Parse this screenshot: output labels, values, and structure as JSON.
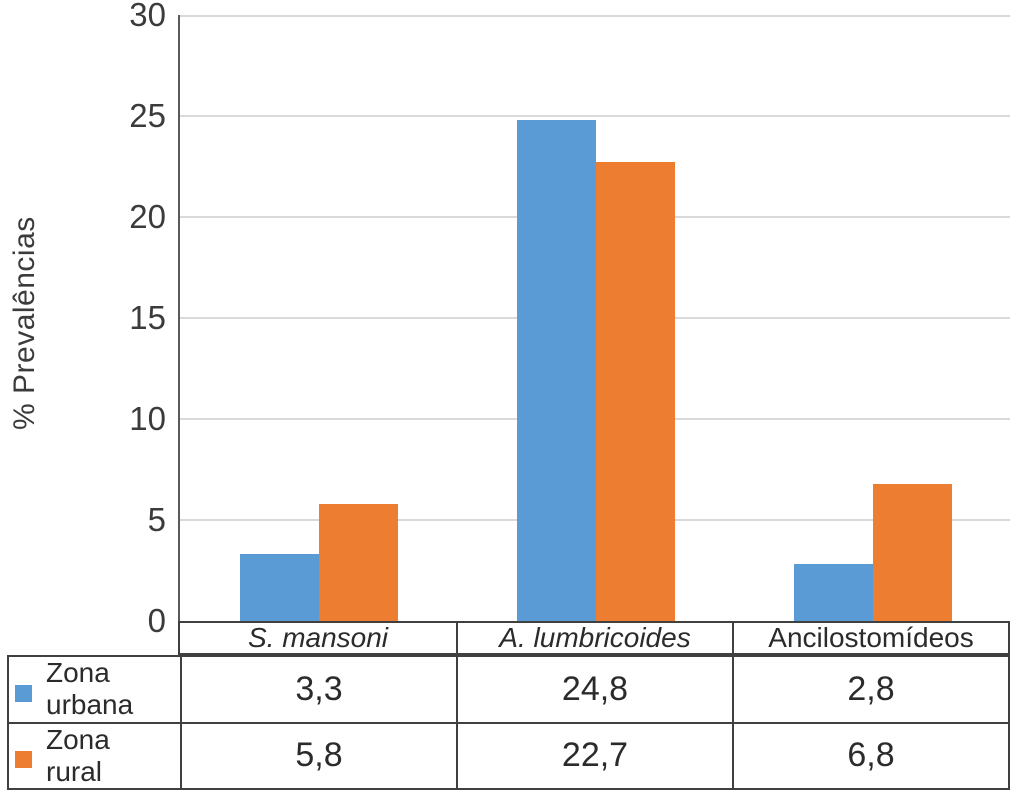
{
  "chart_data": {
    "type": "bar",
    "title": "",
    "xlabel": "",
    "ylabel": "% Prevalências",
    "categories": [
      "S. mansoni",
      "A. lumbricoides",
      "Ancilostomídeos"
    ],
    "categories_italic": [
      true,
      true,
      false
    ],
    "series": [
      {
        "name": "Zona urbana",
        "color": "#5B9BD5",
        "values": [
          3.3,
          24.8,
          2.8
        ],
        "display_values": [
          "3,3",
          "24,8",
          "2,8"
        ]
      },
      {
        "name": "Zona rural",
        "color": "#ED7D31",
        "values": [
          5.8,
          22.7,
          6.8
        ],
        "display_values": [
          "5,8",
          "22,7",
          "6,8"
        ]
      }
    ],
    "ylim": [
      0,
      30
    ],
    "yticks": [
      0,
      5,
      10,
      15,
      20,
      25,
      30
    ],
    "grid": true,
    "legend_position": "table-left",
    "gridline_color": "#D9D9D9",
    "axis_color": "#595959",
    "table_border_color": "#404040"
  }
}
